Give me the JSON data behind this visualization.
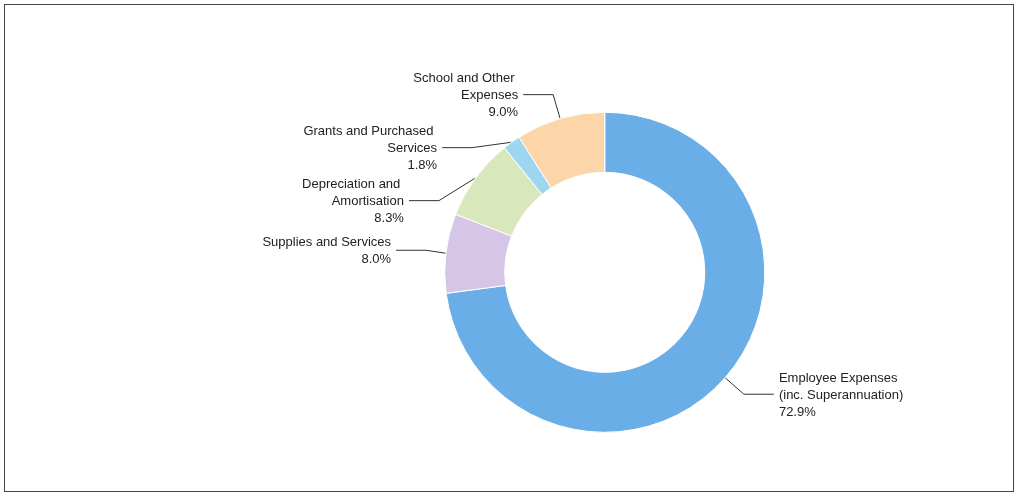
{
  "chart_data": {
    "type": "donut",
    "categories": [
      "Employee Expenses (inc. Superannuation)",
      "Supplies and Services",
      "Depreciation and Amortisation",
      "Grants and Purchased Services",
      "School and Other Expenses"
    ],
    "values": [
      72.9,
      8.0,
      8.3,
      1.8,
      9.0
    ],
    "value_labels": [
      "72.9%",
      "8.0%",
      "8.3%",
      "1.8%",
      "9.0%"
    ],
    "colors": [
      "#6aaee8",
      "#d5c6e8",
      "#d8e8bc",
      "#9fd6ef",
      "#fcd6a8"
    ],
    "legend": false
  }
}
